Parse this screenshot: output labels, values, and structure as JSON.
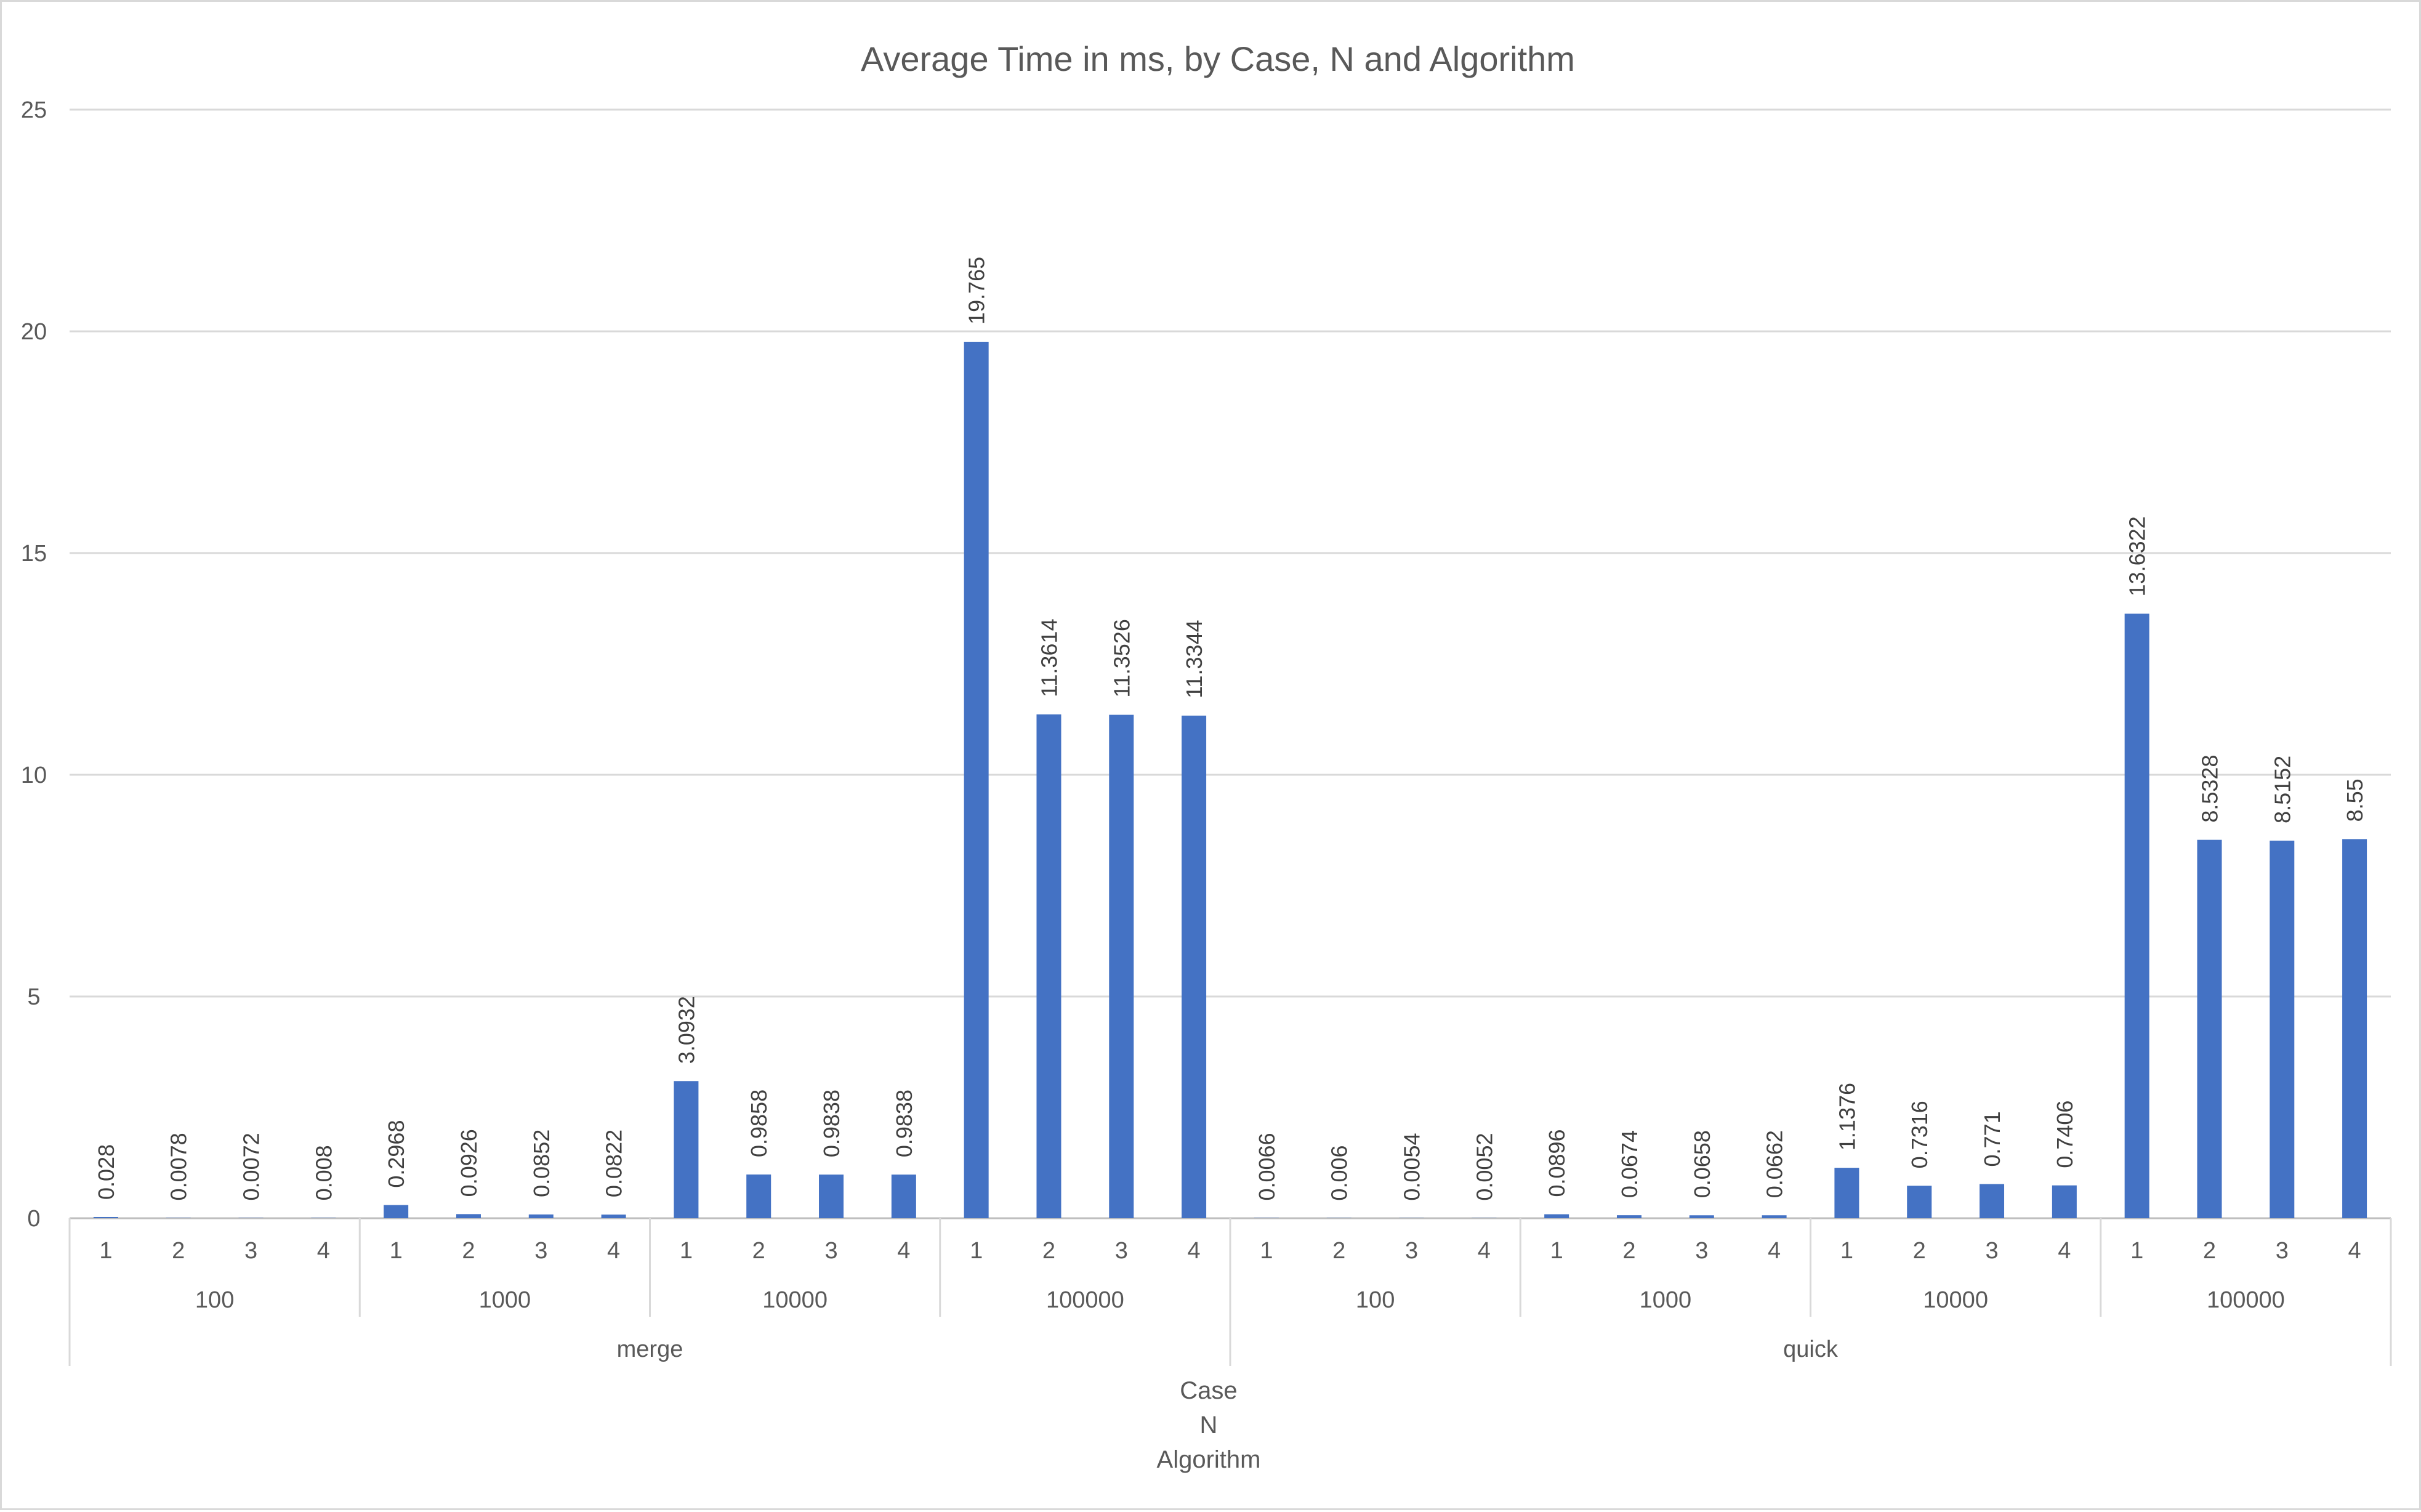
{
  "chart_data": {
    "type": "bar",
    "title": "Average Time in ms, by Case, N and Algorithm",
    "axis_title_lines": [
      "Case",
      "N",
      "Algorithm"
    ],
    "ylim": [
      0,
      25
    ],
    "y_ticks": [
      0,
      5,
      10,
      15,
      20,
      25
    ],
    "grid": true,
    "legend": "none",
    "bar_color": "#4472C4",
    "groups": [
      {
        "algorithm": "merge",
        "sizes": [
          {
            "n": "100",
            "cases": [
              "1",
              "2",
              "3",
              "4"
            ],
            "values": [
              0.028,
              0.0078,
              0.0072,
              0.008
            ],
            "labels": [
              "0.028",
              "0.0078",
              "0.0072",
              "0.008"
            ]
          },
          {
            "n": "1000",
            "cases": [
              "1",
              "2",
              "3",
              "4"
            ],
            "values": [
              0.2968,
              0.0926,
              0.0852,
              0.0822
            ],
            "labels": [
              "0.2968",
              "0.0926",
              "0.0852",
              "0.0822"
            ]
          },
          {
            "n": "10000",
            "cases": [
              "1",
              "2",
              "3",
              "4"
            ],
            "values": [
              3.0932,
              0.9858,
              0.9838,
              0.9838
            ],
            "labels": [
              "3.0932",
              "0.9858",
              "0.9838",
              "0.9838"
            ]
          },
          {
            "n": "100000",
            "cases": [
              "1",
              "2",
              "3",
              "4"
            ],
            "values": [
              19.765,
              11.3614,
              11.3526,
              11.3344
            ],
            "labels": [
              "19.765",
              "11.3614",
              "11.3526",
              "11.3344"
            ]
          }
        ]
      },
      {
        "algorithm": "quick",
        "sizes": [
          {
            "n": "100",
            "cases": [
              "1",
              "2",
              "3",
              "4"
            ],
            "values": [
              0.0066,
              0.006,
              0.0054,
              0.0052
            ],
            "labels": [
              "0.0066",
              "0.006",
              "0.0054",
              "0.0052"
            ]
          },
          {
            "n": "1000",
            "cases": [
              "1",
              "2",
              "3",
              "4"
            ],
            "values": [
              0.0896,
              0.0674,
              0.0658,
              0.0662
            ],
            "labels": [
              "0.0896",
              "0.0674",
              "0.0658",
              "0.0662"
            ]
          },
          {
            "n": "10000",
            "cases": [
              "1",
              "2",
              "3",
              "4"
            ],
            "values": [
              1.1376,
              0.7316,
              0.771,
              0.7406
            ],
            "labels": [
              "1.1376",
              "0.7316",
              "0.771",
              "0.7406"
            ]
          },
          {
            "n": "100000",
            "cases": [
              "1",
              "2",
              "3",
              "4"
            ],
            "values": [
              13.6322,
              8.5328,
              8.5152,
              8.55
            ],
            "labels": [
              "13.6322",
              "8.5328",
              "8.5152",
              "8.55"
            ]
          }
        ]
      }
    ]
  }
}
